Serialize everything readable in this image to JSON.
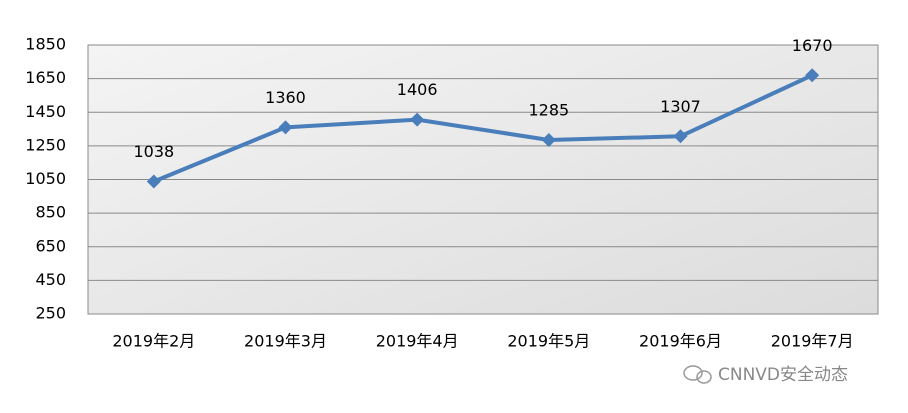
{
  "chart_data": {
    "type": "line",
    "categories": [
      "2019年2月",
      "2019年3月",
      "2019年4月",
      "2019年5月",
      "2019年6月",
      "2019年7月"
    ],
    "series": [
      {
        "name": "",
        "color": "#4a7ebb",
        "values": [
          1038,
          1360,
          1406,
          1285,
          1307,
          1670
        ]
      }
    ],
    "ylim": [
      250,
      1850
    ],
    "yticks": [
      250,
      450,
      650,
      850,
      1050,
      1250,
      1450,
      1650,
      1850
    ],
    "grid": true,
    "data_labels": true,
    "annotation": "CNNVD安全动态"
  }
}
